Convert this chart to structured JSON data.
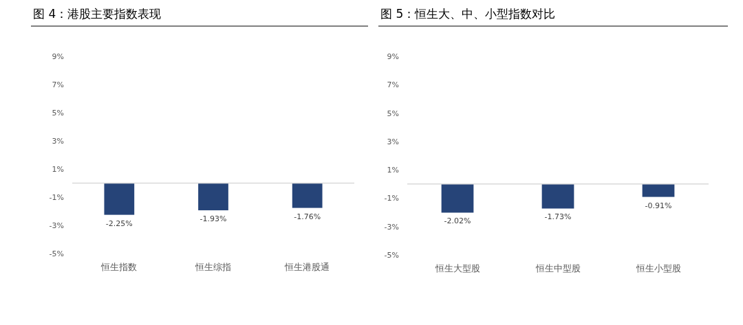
{
  "chart_data": [
    {
      "type": "bar",
      "title": "图 4：港股主要指数表现",
      "categories": [
        "恒生指数",
        "恒生综指",
        "恒生港股通"
      ],
      "values": [
        -2.25,
        -1.93,
        -1.76
      ],
      "value_labels": [
        "-2.25%",
        "-1.93%",
        "-1.76%"
      ],
      "color": "#264478",
      "ylim": [
        -5,
        9
      ],
      "yticks": [
        {
          "value": -5,
          "label": "-5%"
        },
        {
          "value": -3,
          "label": "-3%"
        },
        {
          "value": -1,
          "label": "-1%"
        },
        {
          "value": 1,
          "label": "1%"
        },
        {
          "value": 3,
          "label": "3%"
        },
        {
          "value": 5,
          "label": "5%"
        },
        {
          "value": 7,
          "label": "7%"
        },
        {
          "value": 9,
          "label": "9%"
        }
      ],
      "grid": false
    },
    {
      "type": "bar",
      "title": "图 5：恒生大、中、小型指数对比",
      "categories": [
        "恒生大型股",
        "恒生中型股",
        "恒生小型股"
      ],
      "values": [
        -2.02,
        -1.73,
        -0.91
      ],
      "value_labels": [
        "-2.02%",
        "-1.73%",
        "-0.91%"
      ],
      "color": "#264478",
      "ylim": [
        -5,
        9
      ],
      "yticks": [
        {
          "value": -5,
          "label": "-5%"
        },
        {
          "value": -3,
          "label": "-3%"
        },
        {
          "value": -1,
          "label": "-1%"
        },
        {
          "value": 1,
          "label": "1%"
        },
        {
          "value": 3,
          "label": "3%"
        },
        {
          "value": 5,
          "label": "5%"
        },
        {
          "value": 7,
          "label": "7%"
        },
        {
          "value": 9,
          "label": "9%"
        }
      ],
      "grid": false
    }
  ]
}
